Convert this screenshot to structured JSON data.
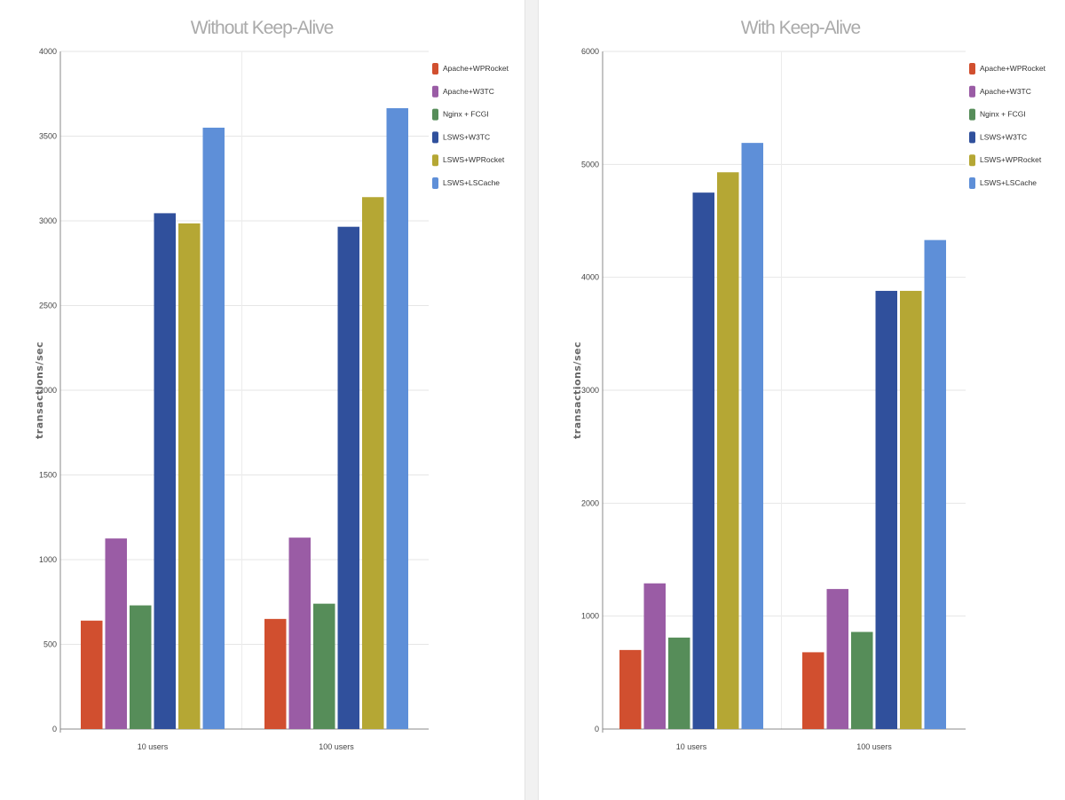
{
  "chart_data": [
    {
      "type": "bar",
      "title": "Without Keep-Alive",
      "ylabel": "transactions/sec",
      "categories": [
        "10 users",
        "100 users"
      ],
      "ylim": [
        0,
        4000
      ],
      "yticks": [
        0,
        500,
        1000,
        1500,
        2000,
        2500,
        3000,
        3500,
        4000
      ],
      "grid": true,
      "legend": "top-right",
      "series": [
        {
          "name": "Apache+WPRocket",
          "color": "#d14f2f",
          "values": [
            640,
            650
          ]
        },
        {
          "name": "Apache+W3TC",
          "color": "#9a5ca5",
          "values": [
            1125,
            1130
          ]
        },
        {
          "name": "Nginx + FCGI",
          "color": "#568d59",
          "values": [
            730,
            740
          ]
        },
        {
          "name": "LSWS+W3TC",
          "color": "#30509c",
          "values": [
            3045,
            2965
          ]
        },
        {
          "name": "LSWS+WPRocket",
          "color": "#b5a734",
          "values": [
            2985,
            3140
          ]
        },
        {
          "name": "LSWS+LSCache",
          "color": "#5e8fd8",
          "values": [
            3550,
            3665
          ]
        }
      ]
    },
    {
      "type": "bar",
      "title": "With Keep-Alive",
      "ylabel": "transactions/sec",
      "categories": [
        "10 users",
        "100 users"
      ],
      "ylim": [
        0,
        6000
      ],
      "yticks": [
        0,
        1000,
        2000,
        3000,
        4000,
        5000,
        6000
      ],
      "grid": true,
      "legend": "top-right",
      "series": [
        {
          "name": "Apache+WPRocket",
          "color": "#d14f2f",
          "values": [
            700,
            680
          ]
        },
        {
          "name": "Apache+W3TC",
          "color": "#9a5ca5",
          "values": [
            1290,
            1240
          ]
        },
        {
          "name": "Nginx + FCGI",
          "color": "#568d59",
          "values": [
            810,
            860
          ]
        },
        {
          "name": "LSWS+W3TC",
          "color": "#30509c",
          "values": [
            4750,
            3880
          ]
        },
        {
          "name": "LSWS+WPRocket",
          "color": "#b5a734",
          "values": [
            4930,
            3880
          ]
        },
        {
          "name": "LSWS+LSCache",
          "color": "#5e8fd8",
          "values": [
            5190,
            4330
          ]
        }
      ]
    }
  ]
}
